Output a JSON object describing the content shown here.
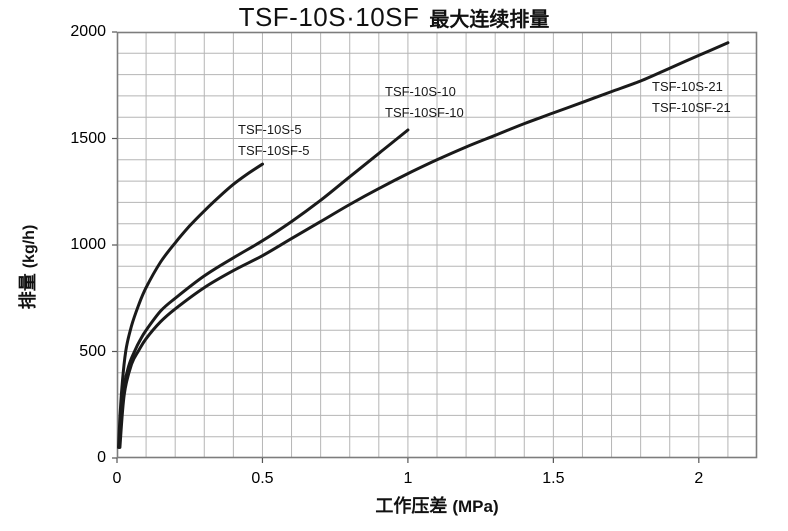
{
  "title": {
    "model": "TSF-10S·10SF",
    "label": "最大连续排量"
  },
  "colors": {
    "curve": "#1a1a1a",
    "grid": "#b5b5b5",
    "plot_border": "#7d7d7d",
    "tick": "#555555",
    "background": "#ffffff"
  },
  "chart_data": {
    "type": "line",
    "title": "TSF-10S·10SF 最大连续排量",
    "xlabel": "工作压差 (MPa)",
    "xlabel_cn": "工作压差",
    "xlabel_unit": "(MPa)",
    "ylabel": "排量 (kg/h)",
    "ylabel_cn": "排量",
    "ylabel_unit": "(kg/h)",
    "xlim": [
      0,
      2.2
    ],
    "ylim": [
      0,
      2000
    ],
    "grid": true,
    "minor_grid": {
      "x_step": 0.1,
      "y_step": 100
    },
    "x_tick_values": [
      0,
      0.5,
      1,
      1.5,
      2
    ],
    "x_tick_labels": [
      "0",
      "0.5",
      "1",
      "1.5",
      "2"
    ],
    "y_tick_values": [
      0,
      500,
      1000,
      1500,
      2000
    ],
    "y_tick_labels": [
      "0",
      "500",
      "1000",
      "1500",
      "2000"
    ],
    "legend_position": "labels-on-chart",
    "series": [
      {
        "name": [
          "TSF-10S-5",
          "TSF-10SF-5"
        ],
        "max_pressure_mpa": 0.5,
        "end_point": [
          0.5,
          1380
        ],
        "points": [
          [
            0.005,
            50
          ],
          [
            0.015,
            300
          ],
          [
            0.03,
            500
          ],
          [
            0.05,
            620
          ],
          [
            0.075,
            720
          ],
          [
            0.1,
            800
          ],
          [
            0.15,
            920
          ],
          [
            0.2,
            1010
          ],
          [
            0.25,
            1090
          ],
          [
            0.3,
            1160
          ],
          [
            0.35,
            1225
          ],
          [
            0.4,
            1285
          ],
          [
            0.45,
            1335
          ],
          [
            0.5,
            1380
          ]
        ]
      },
      {
        "name": [
          "TSF-10S-10",
          "TSF-10SF-10"
        ],
        "max_pressure_mpa": 1.0,
        "end_point": [
          1.0,
          1540
        ],
        "points": [
          [
            0.008,
            50
          ],
          [
            0.02,
            300
          ],
          [
            0.04,
            430
          ],
          [
            0.06,
            500
          ],
          [
            0.08,
            555
          ],
          [
            0.1,
            600
          ],
          [
            0.15,
            690
          ],
          [
            0.2,
            750
          ],
          [
            0.3,
            855
          ],
          [
            0.4,
            940
          ],
          [
            0.5,
            1020
          ],
          [
            0.6,
            1110
          ],
          [
            0.7,
            1210
          ],
          [
            0.8,
            1320
          ],
          [
            0.9,
            1430
          ],
          [
            1.0,
            1540
          ]
        ]
      },
      {
        "name": [
          "TSF-10S-21",
          "TSF-10SF-21"
        ],
        "max_pressure_mpa": 2.1,
        "end_point": [
          2.1,
          1950
        ],
        "points": [
          [
            0.01,
            50
          ],
          [
            0.025,
            300
          ],
          [
            0.05,
            440
          ],
          [
            0.075,
            505
          ],
          [
            0.1,
            560
          ],
          [
            0.15,
            640
          ],
          [
            0.2,
            700
          ],
          [
            0.3,
            800
          ],
          [
            0.4,
            880
          ],
          [
            0.5,
            950
          ],
          [
            0.6,
            1030
          ],
          [
            0.7,
            1110
          ],
          [
            0.8,
            1190
          ],
          [
            0.9,
            1265
          ],
          [
            1.0,
            1335
          ],
          [
            1.1,
            1400
          ],
          [
            1.2,
            1460
          ],
          [
            1.3,
            1515
          ],
          [
            1.4,
            1570
          ],
          [
            1.5,
            1620
          ],
          [
            1.6,
            1670
          ],
          [
            1.7,
            1720
          ],
          [
            1.8,
            1770
          ],
          [
            1.9,
            1830
          ],
          [
            2.0,
            1890
          ],
          [
            2.1,
            1950
          ]
        ]
      }
    ]
  }
}
